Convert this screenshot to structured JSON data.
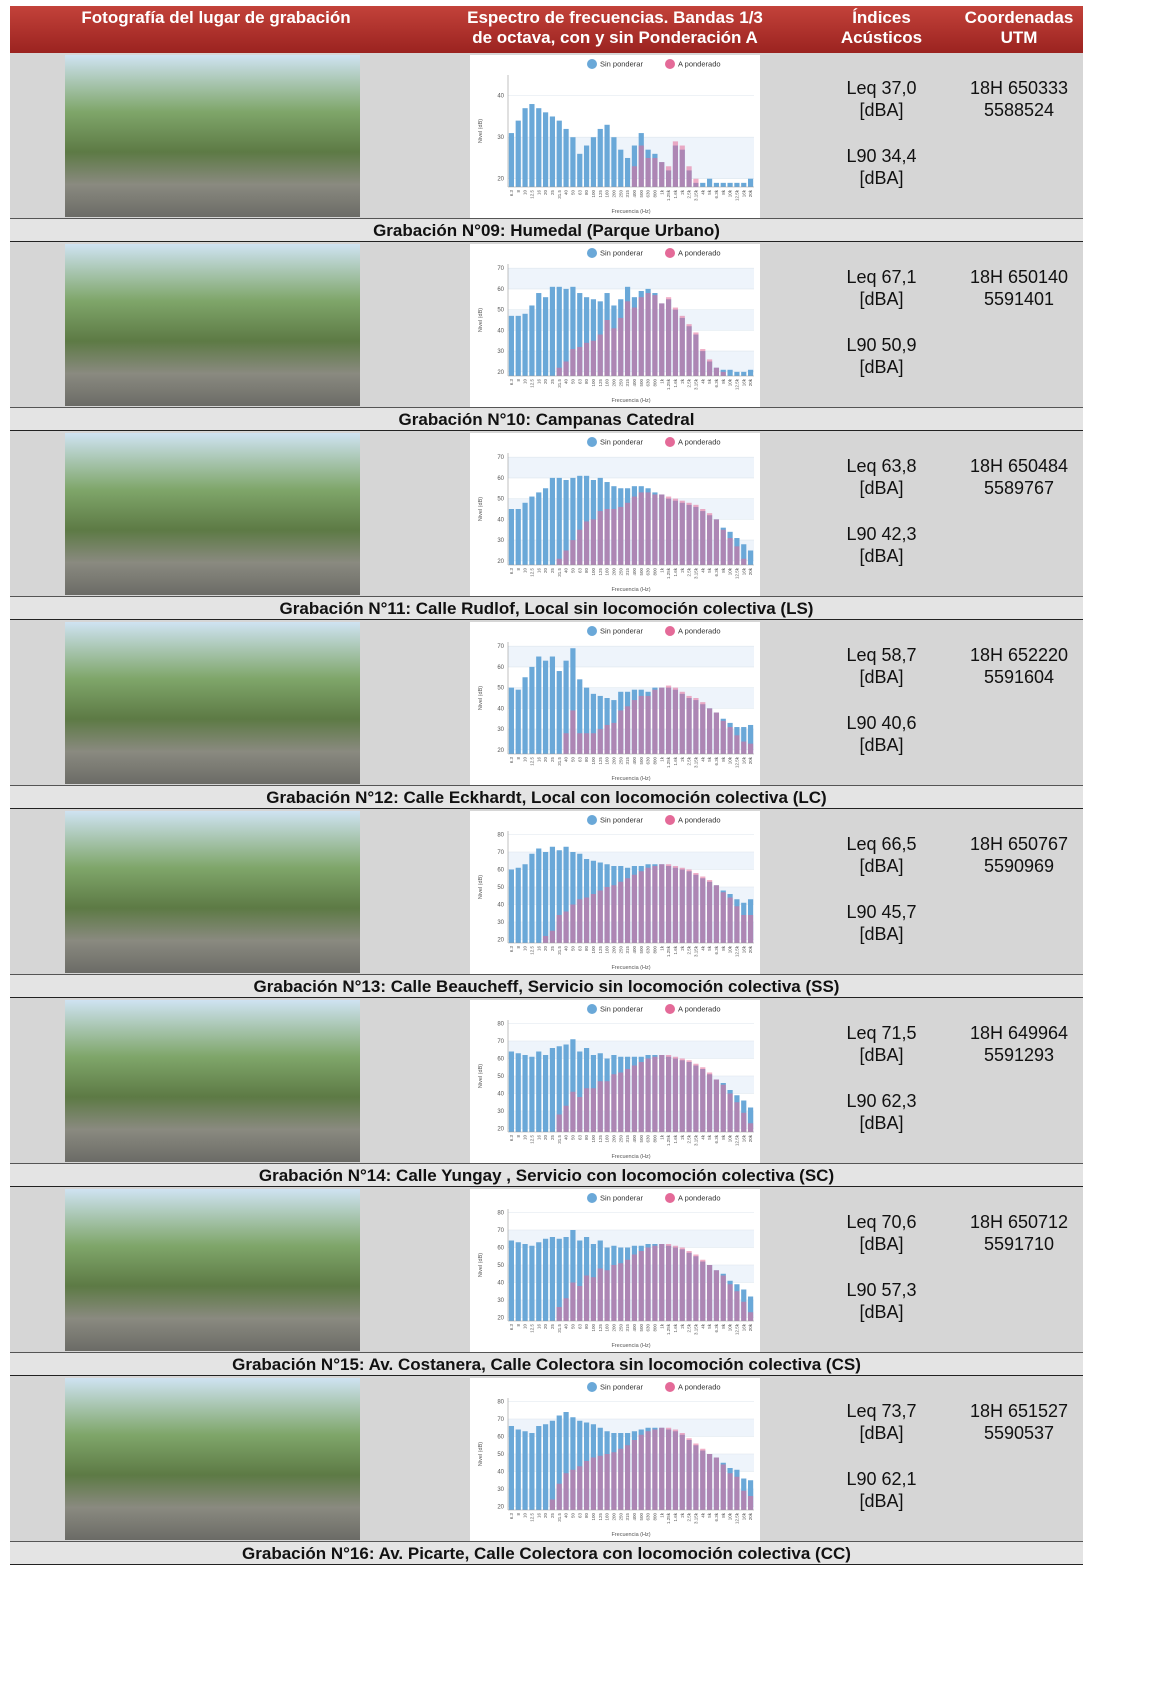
{
  "header": {
    "photo": [
      "Fotografía del lugar de grabación"
    ],
    "spectrum": [
      "Espectro de frecuencias. Bandas 1/3",
      "de octava, con y sin Ponderación A"
    ],
    "indices": [
      "Índices",
      "Acústicos"
    ],
    "coordinates": [
      "Coordenadas",
      "UTM"
    ]
  },
  "spectrum": {
    "bands": [
      "6.3",
      "8",
      "10",
      "12.5",
      "16",
      "20",
      "25",
      "31.5",
      "40",
      "50",
      "63",
      "80",
      "100",
      "125",
      "160",
      "200",
      "250",
      "315",
      "400",
      "500",
      "630",
      "800",
      "1k",
      "1.25k",
      "1.6k",
      "2k",
      "2.5k",
      "3.15k",
      "4k",
      "5k",
      "6.3k",
      "8k",
      "10k",
      "12.5k",
      "16k",
      "20k"
    ],
    "series": [
      {
        "name": "Sin ponderar",
        "color": "#6aa8d8"
      },
      {
        "name": "A ponderado",
        "color": "#e46a98"
      }
    ],
    "y_title": "Nivel (dB)",
    "x_title": "Frecuencia (Hz)"
  },
  "rows": [
    {
      "chart": {
        "ylim": [
          18,
          45
        ],
        "yticks": [
          20,
          30,
          40
        ],
        "unweighted": [
          31,
          34,
          37,
          38,
          37,
          36,
          35,
          34,
          32,
          30,
          26,
          28,
          30,
          32,
          33,
          30,
          27,
          25,
          28,
          31,
          27,
          26,
          24,
          22,
          28,
          27,
          22,
          19,
          19,
          20,
          19,
          19,
          19,
          19,
          19,
          20
        ],
        "weighted": [
          null,
          null,
          null,
          null,
          null,
          null,
          null,
          null,
          null,
          null,
          null,
          null,
          null,
          null,
          null,
          null,
          null,
          null,
          23,
          28,
          25,
          25,
          24,
          23,
          29,
          28,
          23,
          20,
          null,
          null,
          null,
          null,
          null,
          null,
          null,
          null
        ]
      },
      "leq": [
        "Leq 37,0",
        "[dBA]"
      ],
      "l90": [
        "L90 34,4",
        "[dBA]"
      ],
      "coordinates": [
        "18H 650333",
        "5588524"
      ],
      "caption": "Grabación N°09: Humedal (Parque Urbano)"
    },
    {
      "chart": {
        "ylim": [
          18,
          72
        ],
        "yticks": [
          20,
          30,
          40,
          50,
          60,
          70
        ],
        "unweighted": [
          47,
          47,
          48,
          52,
          58,
          56,
          61,
          61,
          60,
          61,
          58,
          56,
          55,
          54,
          58,
          52,
          55,
          61,
          56,
          59,
          60,
          58,
          53,
          55,
          50,
          46,
          42,
          38,
          30,
          25,
          22,
          21,
          21,
          20,
          20,
          21
        ],
        "weighted": [
          null,
          null,
          null,
          null,
          null,
          null,
          null,
          22,
          25,
          31,
          32,
          34,
          35,
          38,
          45,
          41,
          46,
          54,
          51,
          56,
          58,
          57,
          53,
          56,
          51,
          47,
          43,
          39,
          31,
          26,
          22,
          20,
          null,
          null,
          null,
          null
        ]
      },
      "leq": [
        "Leq 67,1",
        "[dBA]"
      ],
      "l90": [
        "L90 50,9",
        "[dBA]"
      ],
      "coordinates": [
        "18H 650140",
        "5591401"
      ],
      "caption": "Grabación N°10: Campanas Catedral"
    },
    {
      "chart": {
        "ylim": [
          18,
          72
        ],
        "yticks": [
          20,
          30,
          40,
          50,
          60,
          70
        ],
        "unweighted": [
          45,
          45,
          48,
          51,
          53,
          55,
          60,
          60,
          59,
          60,
          61,
          61,
          59,
          60,
          58,
          56,
          55,
          55,
          56,
          56,
          55,
          53,
          52,
          50,
          49,
          48,
          47,
          46,
          44,
          42,
          40,
          36,
          34,
          31,
          28,
          25
        ],
        "weighted": [
          null,
          null,
          null,
          null,
          null,
          null,
          null,
          21,
          25,
          30,
          35,
          39,
          40,
          44,
          45,
          45,
          46,
          48,
          51,
          53,
          53,
          52,
          52,
          51,
          50,
          49,
          48,
          47,
          45,
          43,
          40,
          35,
          31,
          27,
          21,
          null
        ]
      },
      "leq": [
        "Leq 63,8",
        "[dBA]"
      ],
      "l90": [
        "L90 42,3",
        "[dBA]"
      ],
      "coordinates": [
        "18H 650484",
        "5589767"
      ],
      "caption": "Grabación N°11: Calle Rudlof, Local sin locomoción colectiva (LS)"
    },
    {
      "chart": {
        "ylim": [
          18,
          72
        ],
        "yticks": [
          20,
          30,
          40,
          50,
          60,
          70
        ],
        "unweighted": [
          50,
          49,
          55,
          60,
          65,
          63,
          65,
          58,
          63,
          69,
          54,
          50,
          47,
          46,
          45,
          44,
          48,
          48,
          49,
          49,
          48,
          50,
          50,
          50,
          49,
          47,
          45,
          44,
          42,
          40,
          38,
          35,
          33,
          31,
          31,
          32
        ],
        "weighted": [
          null,
          null,
          null,
          null,
          null,
          null,
          null,
          null,
          28,
          39,
          28,
          28,
          28,
          30,
          32,
          33,
          39,
          41,
          44,
          46,
          46,
          49,
          50,
          51,
          50,
          48,
          46,
          45,
          43,
          40,
          38,
          34,
          31,
          27,
          24,
          23
        ]
      },
      "leq": [
        "Leq 58,7",
        "[dBA]"
      ],
      "l90": [
        "L90 40,6",
        "[dBA]"
      ],
      "coordinates": [
        "18H 652220",
        "5591604"
      ],
      "caption": "Grabación N°12: Calle Eckhardt, Local con locomoción colectiva (LC)"
    },
    {
      "chart": {
        "ylim": [
          18,
          82
        ],
        "yticks": [
          20,
          30,
          40,
          50,
          60,
          70,
          80
        ],
        "unweighted": [
          60,
          61,
          63,
          69,
          72,
          70,
          73,
          71,
          73,
          70,
          69,
          66,
          65,
          64,
          63,
          62,
          62,
          61,
          62,
          62,
          63,
          63,
          63,
          62,
          61,
          60,
          59,
          57,
          55,
          53,
          51,
          48,
          46,
          43,
          41,
          43
        ],
        "weighted": [
          null,
          null,
          null,
          null,
          null,
          22,
          25,
          34,
          36,
          40,
          43,
          44,
          46,
          48,
          50,
          51,
          53,
          55,
          57,
          59,
          61,
          62,
          63,
          63,
          62,
          61,
          60,
          58,
          56,
          54,
          51,
          47,
          44,
          39,
          34,
          34
        ]
      },
      "leq": [
        "Leq 66,5",
        "[dBA]"
      ],
      "l90": [
        "L90 45,7",
        "[dBA]"
      ],
      "coordinates": [
        "18H 650767",
        "5590969"
      ],
      "caption": "Grabación N°13: Calle Beaucheff, Servicio sin locomoción colectiva (SS)"
    },
    {
      "chart": {
        "ylim": [
          18,
          82
        ],
        "yticks": [
          20,
          30,
          40,
          50,
          60,
          70,
          80
        ],
        "unweighted": [
          64,
          63,
          62,
          61,
          64,
          62,
          66,
          67,
          68,
          71,
          64,
          66,
          62,
          63,
          60,
          62,
          61,
          61,
          61,
          61,
          62,
          62,
          62,
          61,
          60,
          59,
          58,
          56,
          54,
          51,
          48,
          46,
          42,
          39,
          36,
          32
        ],
        "weighted": [
          null,
          null,
          null,
          null,
          null,
          null,
          null,
          28,
          33,
          41,
          38,
          43,
          43,
          47,
          47,
          51,
          52,
          54,
          56,
          58,
          60,
          61,
          62,
          62,
          61,
          60,
          59,
          57,
          55,
          52,
          48,
          45,
          40,
          35,
          29,
          23
        ]
      },
      "leq": [
        "Leq 71,5",
        "[dBA]"
      ],
      "l90": [
        "L90 62,3",
        "[dBA]"
      ],
      "coordinates": [
        "18H 649964",
        "5591293"
      ],
      "caption": "Grabación N°14: Calle Yungay , Servicio con locomoción colectiva (SC)"
    },
    {
      "chart": {
        "ylim": [
          18,
          82
        ],
        "yticks": [
          20,
          30,
          40,
          50,
          60,
          70,
          80
        ],
        "unweighted": [
          64,
          63,
          62,
          61,
          63,
          65,
          66,
          65,
          66,
          70,
          64,
          66,
          62,
          64,
          60,
          61,
          60,
          60,
          61,
          61,
          62,
          62,
          62,
          61,
          60,
          59,
          57,
          55,
          52,
          50,
          47,
          45,
          41,
          39,
          36,
          32
        ],
        "weighted": [
          null,
          null,
          null,
          null,
          null,
          null,
          null,
          26,
          31,
          40,
          38,
          44,
          43,
          48,
          47,
          50,
          51,
          53,
          56,
          58,
          60,
          61,
          62,
          62,
          61,
          60,
          58,
          56,
          53,
          50,
          47,
          44,
          39,
          35,
          29,
          23
        ]
      },
      "leq": [
        "Leq 70,6",
        "[dBA]"
      ],
      "l90": [
        "L90 57,3",
        "[dBA]"
      ],
      "coordinates": [
        "18H 650712",
        "5591710"
      ],
      "caption": "Grabación N°15: Av. Costanera, Calle Colectora sin locomoción colectiva (CS)"
    },
    {
      "chart": {
        "ylim": [
          18,
          82
        ],
        "yticks": [
          20,
          30,
          40,
          50,
          60,
          70,
          80
        ],
        "unweighted": [
          66,
          64,
          63,
          62,
          66,
          67,
          69,
          72,
          74,
          71,
          69,
          68,
          67,
          65,
          63,
          62,
          62,
          62,
          63,
          64,
          65,
          65,
          65,
          64,
          63,
          61,
          58,
          55,
          52,
          50,
          48,
          45,
          42,
          41,
          36,
          35
        ],
        "weighted": [
          null,
          null,
          null,
          null,
          null,
          null,
          24,
          33,
          39,
          41,
          43,
          46,
          48,
          49,
          50,
          51,
          53,
          55,
          58,
          61,
          63,
          64,
          65,
          65,
          64,
          62,
          59,
          56,
          53,
          50,
          48,
          44,
          39,
          37,
          29,
          26
        ]
      },
      "leq": [
        "Leq 73,7",
        "[dBA]"
      ],
      "l90": [
        "L90 62,1",
        "[dBA]"
      ],
      "coordinates": [
        "18H 651527",
        "5590537"
      ],
      "caption": "Grabación N°16: Av. Picarte, Calle Colectora con locomoción colectiva (CC)"
    }
  ]
}
